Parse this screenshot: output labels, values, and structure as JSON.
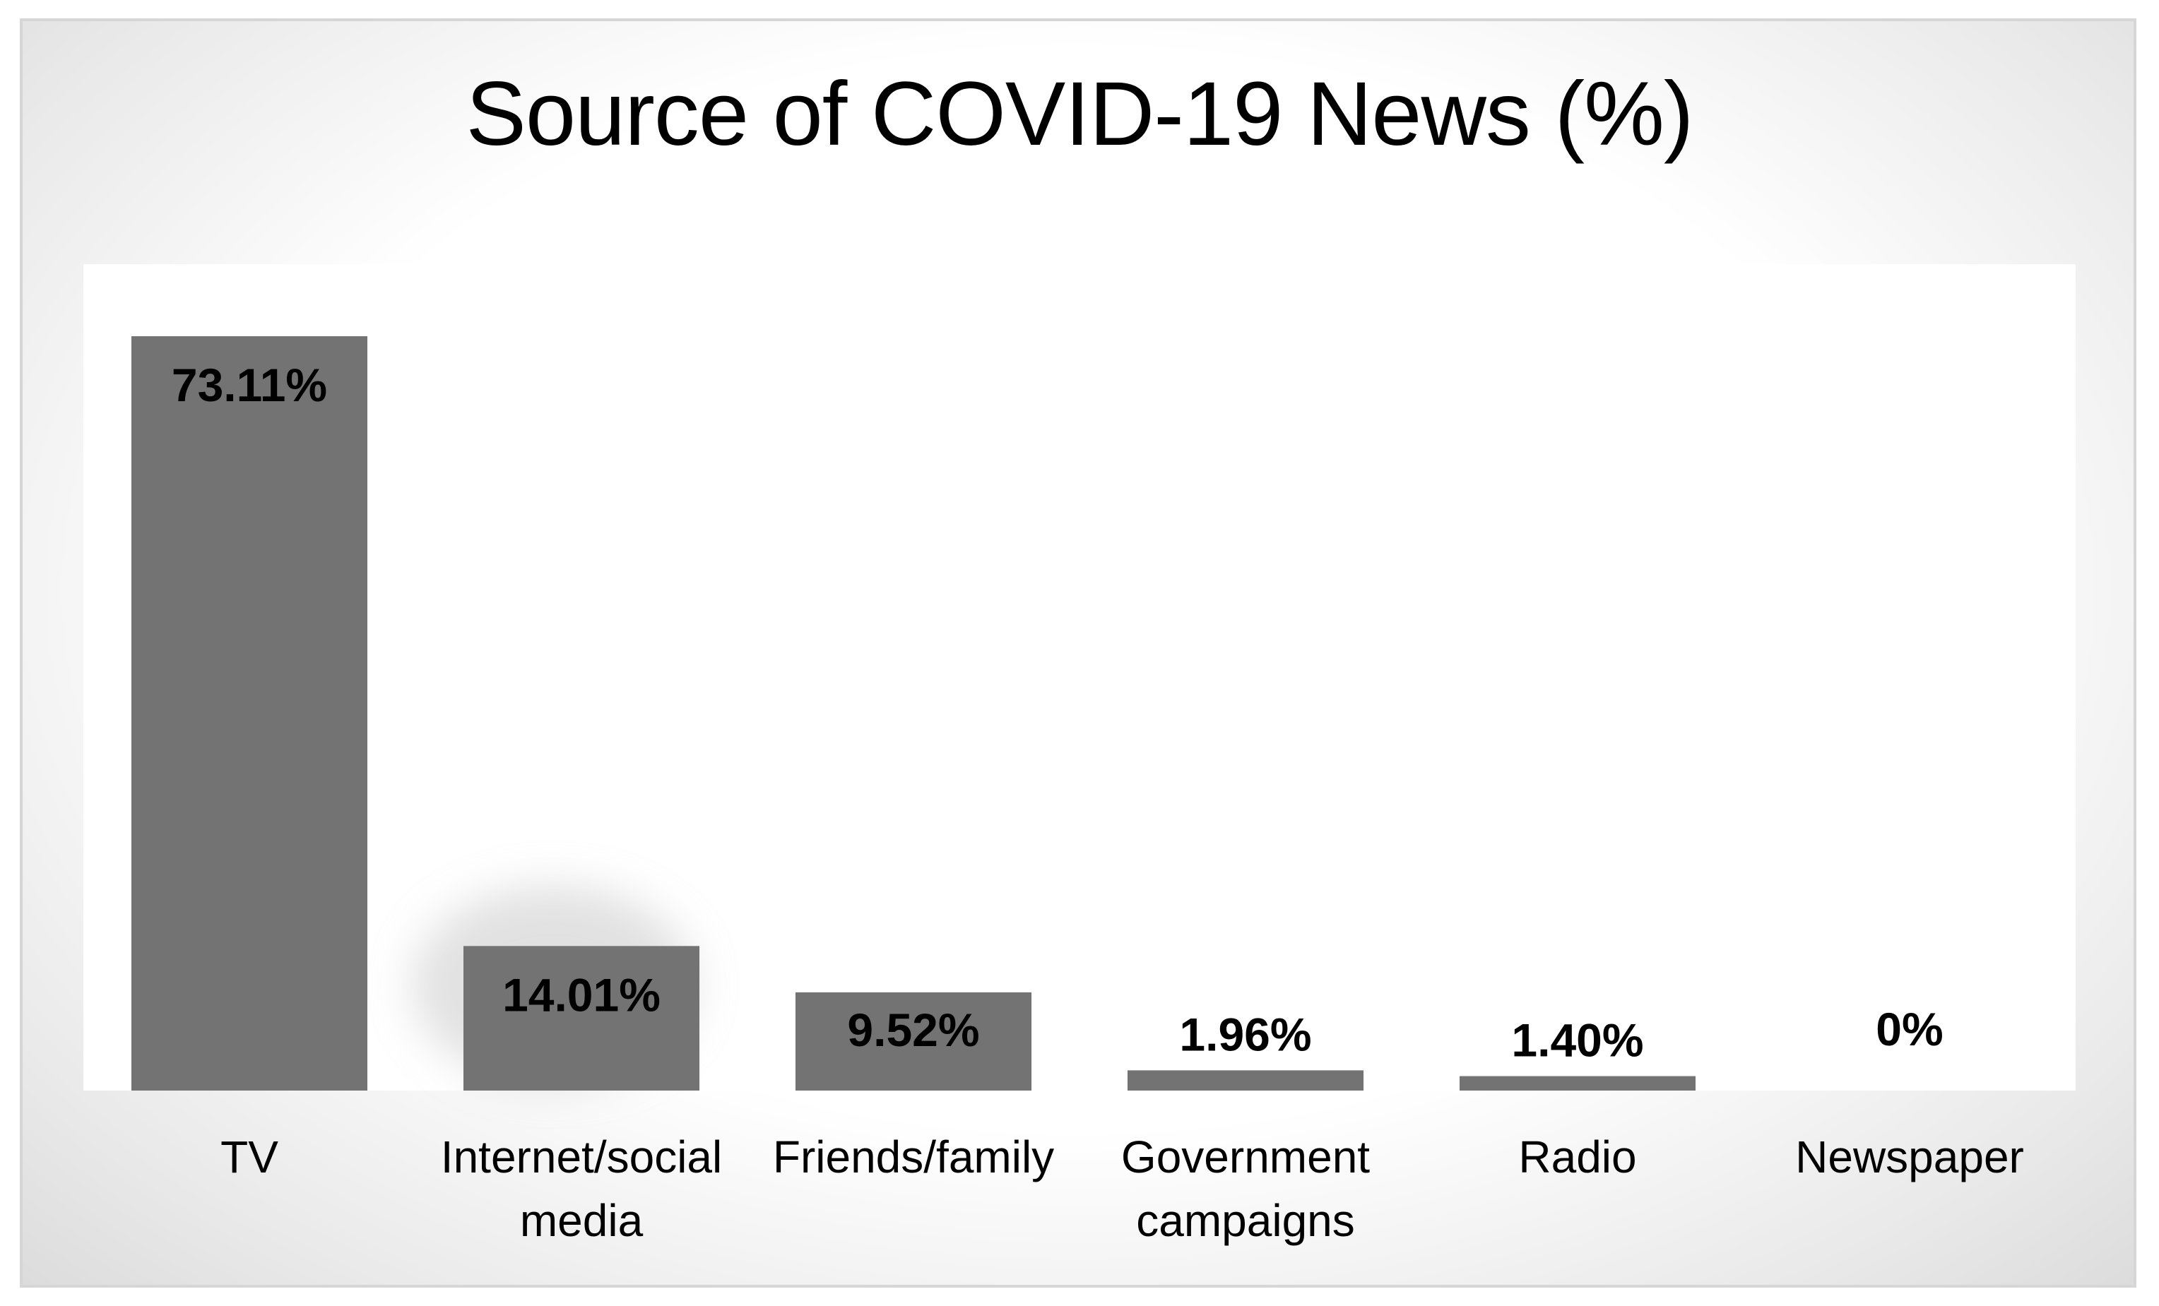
{
  "chart_data": {
    "type": "bar",
    "title": "Source of COVID-19 News (%)",
    "xlabel": "",
    "ylabel": "",
    "ylim": [
      0,
      80
    ],
    "grid": false,
    "legend": "none",
    "categories": [
      "TV",
      "Internet/social media",
      "Friends/family",
      "Government campaigns",
      "Radio",
      "Newspaper"
    ],
    "category_label_lines": [
      [
        "TV"
      ],
      [
        "Internet/social",
        "media"
      ],
      [
        "Friends/family"
      ],
      [
        "Government",
        "campaigns"
      ],
      [
        "Radio"
      ],
      [
        "Newspaper"
      ]
    ],
    "values": [
      73.11,
      14.01,
      9.52,
      1.96,
      1.4,
      0
    ],
    "data_labels": [
      "73.11%",
      "14.01%",
      "9.52%",
      "1.96%",
      "1.40%",
      "0%"
    ],
    "bar_color": "#737373",
    "background_color": "#ffffff"
  }
}
